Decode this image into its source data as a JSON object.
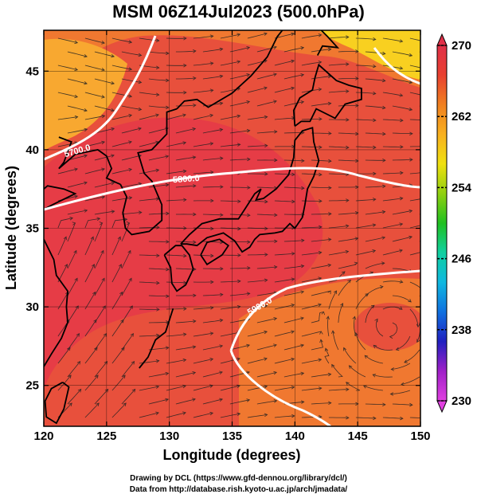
{
  "title": "MSM 06Z14Jul2023 (500.0hPa)",
  "x_axis": {
    "label": "Longitude (degrees)",
    "range": [
      120,
      150
    ],
    "ticks": [
      "120",
      "125",
      "130",
      "135",
      "140",
      "145",
      "150"
    ]
  },
  "y_axis": {
    "label": "Latitude  (degrees)",
    "range": [
      22.4,
      47.6
    ],
    "ticks": [
      "25",
      "30",
      "35",
      "40",
      "45"
    ]
  },
  "colorbar": {
    "ticks": [
      "270",
      "262",
      "254",
      "246",
      "238",
      "230"
    ],
    "range": [
      230,
      270
    ],
    "colors": [
      "#e040e0",
      "#a020c8",
      "#2020c0",
      "#1070e0",
      "#10b8e0",
      "#10d0a0",
      "#20c020",
      "#90d010",
      "#f0e010",
      "#f8b020",
      "#f08020",
      "#e84030",
      "#e03048"
    ]
  },
  "field_colors": {
    "warm": "#e8503c",
    "warmest": "#e63c46",
    "mid": "#f07830",
    "cool": "#f8a830",
    "coolest": "#f8d020"
  },
  "contours": [
    {
      "label": "5700.0",
      "color": "#ffffff"
    },
    {
      "label": "5800.0",
      "color": "#ffffff"
    },
    {
      "label": "5900.0",
      "color": "#ffffff"
    }
  ],
  "credits": [
    "Drawing by DCL (https://www.gfd-dennou.org/library/dcl/)",
    "Data from http://database.rish.kyoto-u.ac.jp/arch/jmadata/"
  ]
}
